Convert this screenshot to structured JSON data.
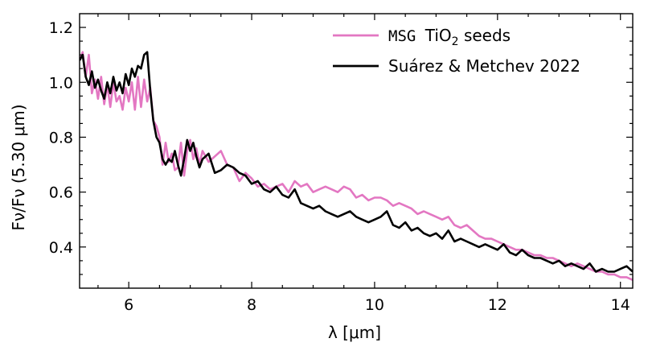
{
  "chart_data": {
    "type": "line",
    "xlabel": "λ [μm]",
    "ylabel": "Fν/Fν (5.30 μm)",
    "xlim": [
      5.2,
      14.2
    ],
    "ylim": [
      0.25,
      1.25
    ],
    "x_ticks": [
      6,
      8,
      10,
      12,
      14
    ],
    "x_tick_labels": [
      "6",
      "8",
      "10",
      "12",
      "14"
    ],
    "y_ticks": [
      0.4,
      0.6,
      0.8,
      1.0,
      1.2
    ],
    "y_tick_labels": [
      "0.4",
      "0.6",
      "0.8",
      "1.0",
      "1.2"
    ],
    "grid": false,
    "legend_position": "top-right",
    "legend": [
      {
        "prefix": "MSG",
        "name": "TiO",
        "sub": "2",
        "suffix": "seeds"
      },
      {
        "prefix": "",
        "name": "Suárez & Metchev 2022",
        "sub": "",
        "suffix": ""
      }
    ],
    "series": [
      {
        "color": "#e377c2",
        "x": [
          5.2,
          5.25,
          5.3,
          5.35,
          5.4,
          5.45,
          5.5,
          5.55,
          5.6,
          5.65,
          5.7,
          5.75,
          5.8,
          5.85,
          5.9,
          5.95,
          6.0,
          6.05,
          6.1,
          6.15,
          6.2,
          6.25,
          6.3,
          6.35,
          6.4,
          6.45,
          6.5,
          6.55,
          6.6,
          6.65,
          6.7,
          6.75,
          6.8,
          6.85,
          6.9,
          6.95,
          7.0,
          7.05,
          7.1,
          7.15,
          7.2,
          7.3,
          7.4,
          7.5,
          7.6,
          7.7,
          7.8,
          7.9,
          8.0,
          8.1,
          8.2,
          8.3,
          8.4,
          8.5,
          8.6,
          8.7,
          8.8,
          8.9,
          9.0,
          9.1,
          9.2,
          9.3,
          9.4,
          9.5,
          9.6,
          9.7,
          9.8,
          9.9,
          10.0,
          10.1,
          10.2,
          10.3,
          10.4,
          10.5,
          10.6,
          10.7,
          10.8,
          10.9,
          11.0,
          11.1,
          11.2,
          11.3,
          11.4,
          11.5,
          11.6,
          11.7,
          11.8,
          11.9,
          12.0,
          12.1,
          12.2,
          12.3,
          12.4,
          12.5,
          12.6,
          12.7,
          12.8,
          12.9,
          13.0,
          13.1,
          13.2,
          13.3,
          13.4,
          13.5,
          13.6,
          13.7,
          13.8,
          13.9,
          14.0,
          14.1,
          14.2
        ],
        "y": [
          1.08,
          1.11,
          1.02,
          1.1,
          0.96,
          1.01,
          0.94,
          1.02,
          0.92,
          0.99,
          0.91,
          1.0,
          0.93,
          0.95,
          0.9,
          0.98,
          0.93,
          1.0,
          0.9,
          1.02,
          0.91,
          1.01,
          0.93,
          0.98,
          0.86,
          0.84,
          0.8,
          0.7,
          0.78,
          0.71,
          0.74,
          0.68,
          0.69,
          0.78,
          0.66,
          0.75,
          0.79,
          0.72,
          0.76,
          0.7,
          0.75,
          0.71,
          0.73,
          0.75,
          0.7,
          0.69,
          0.64,
          0.67,
          0.65,
          0.62,
          0.63,
          0.61,
          0.62,
          0.63,
          0.6,
          0.64,
          0.62,
          0.63,
          0.6,
          0.61,
          0.62,
          0.61,
          0.6,
          0.62,
          0.61,
          0.58,
          0.59,
          0.57,
          0.58,
          0.58,
          0.57,
          0.55,
          0.56,
          0.55,
          0.54,
          0.52,
          0.53,
          0.52,
          0.51,
          0.5,
          0.51,
          0.48,
          0.47,
          0.48,
          0.46,
          0.44,
          0.43,
          0.43,
          0.42,
          0.41,
          0.4,
          0.39,
          0.39,
          0.38,
          0.37,
          0.37,
          0.36,
          0.36,
          0.35,
          0.34,
          0.33,
          0.34,
          0.33,
          0.32,
          0.31,
          0.31,
          0.3,
          0.3,
          0.29,
          0.29,
          0.28
        ]
      },
      {
        "color": "#000000",
        "x": [
          5.2,
          5.25,
          5.3,
          5.35,
          5.4,
          5.45,
          5.5,
          5.55,
          5.6,
          5.65,
          5.7,
          5.75,
          5.8,
          5.85,
          5.9,
          5.95,
          6.0,
          6.05,
          6.1,
          6.15,
          6.2,
          6.25,
          6.3,
          6.35,
          6.4,
          6.45,
          6.5,
          6.55,
          6.6,
          6.65,
          6.7,
          6.75,
          6.8,
          6.85,
          6.9,
          6.95,
          7.0,
          7.05,
          7.1,
          7.15,
          7.2,
          7.3,
          7.4,
          7.5,
          7.6,
          7.7,
          7.8,
          7.9,
          8.0,
          8.1,
          8.2,
          8.3,
          8.4,
          8.5,
          8.6,
          8.7,
          8.8,
          8.9,
          9.0,
          9.1,
          9.2,
          9.3,
          9.4,
          9.5,
          9.6,
          9.7,
          9.8,
          9.9,
          10.0,
          10.1,
          10.2,
          10.3,
          10.4,
          10.5,
          10.6,
          10.7,
          10.8,
          10.9,
          11.0,
          11.1,
          11.2,
          11.3,
          11.4,
          11.5,
          11.6,
          11.7,
          11.8,
          11.9,
          12.0,
          12.1,
          12.2,
          12.3,
          12.4,
          12.5,
          12.6,
          12.7,
          12.8,
          12.9,
          13.0,
          13.1,
          13.2,
          13.3,
          13.4,
          13.5,
          13.6,
          13.7,
          13.8,
          13.9,
          14.0,
          14.1,
          14.2
        ],
        "y": [
          1.08,
          1.1,
          1.02,
          0.99,
          1.04,
          0.98,
          1.01,
          0.97,
          0.94,
          1.0,
          0.96,
          1.02,
          0.97,
          1.0,
          0.96,
          1.03,
          0.99,
          1.05,
          1.02,
          1.06,
          1.05,
          1.1,
          1.11,
          0.97,
          0.86,
          0.8,
          0.78,
          0.72,
          0.7,
          0.72,
          0.71,
          0.75,
          0.7,
          0.66,
          0.72,
          0.79,
          0.75,
          0.78,
          0.73,
          0.69,
          0.72,
          0.74,
          0.67,
          0.68,
          0.7,
          0.69,
          0.67,
          0.66,
          0.63,
          0.64,
          0.61,
          0.6,
          0.62,
          0.59,
          0.58,
          0.61,
          0.56,
          0.55,
          0.54,
          0.55,
          0.53,
          0.52,
          0.51,
          0.52,
          0.53,
          0.51,
          0.5,
          0.49,
          0.5,
          0.51,
          0.53,
          0.48,
          0.47,
          0.49,
          0.46,
          0.47,
          0.45,
          0.44,
          0.45,
          0.43,
          0.46,
          0.42,
          0.43,
          0.42,
          0.41,
          0.4,
          0.41,
          0.4,
          0.39,
          0.41,
          0.38,
          0.37,
          0.39,
          0.37,
          0.36,
          0.36,
          0.35,
          0.34,
          0.35,
          0.33,
          0.34,
          0.33,
          0.32,
          0.34,
          0.31,
          0.32,
          0.31,
          0.31,
          0.32,
          0.33,
          0.31
        ]
      }
    ]
  }
}
